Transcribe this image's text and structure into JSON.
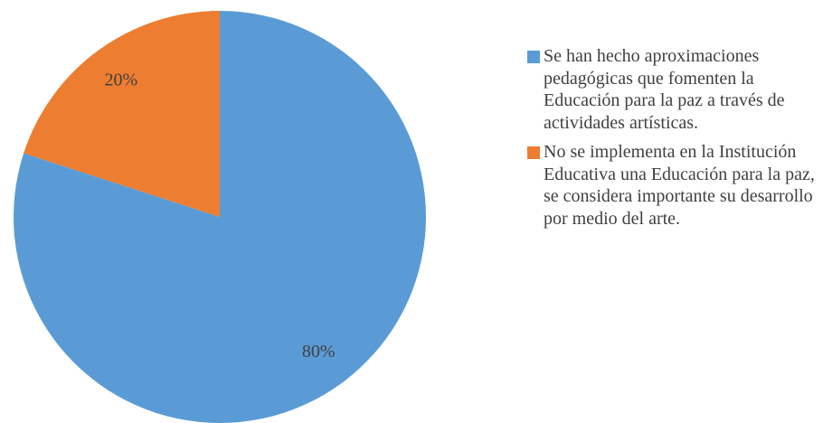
{
  "chart_data": {
    "type": "pie",
    "categories": [
      "Se han hecho aproximaciones pedagógicas que fomenten la Educación para la paz a través de actividades artísticas.",
      "No se implementa en la Institución Educativa una Educación para la paz, se considera importante su desarrollo por medio del arte."
    ],
    "values": [
      80,
      20
    ],
    "value_labels": [
      "80%",
      "20%"
    ],
    "colors": [
      "#5b9bd5",
      "#ed7d31"
    ],
    "legend": "right"
  }
}
